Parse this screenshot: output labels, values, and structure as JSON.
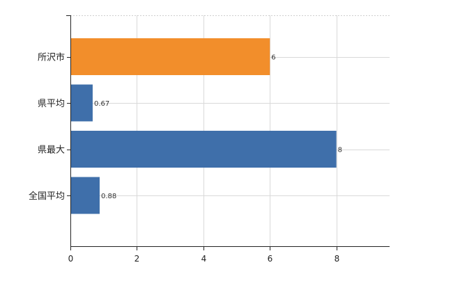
{
  "chart_data": {
    "type": "bar",
    "orientation": "horizontal",
    "title": "",
    "xlabel": "",
    "ylabel": "",
    "categories": [
      "所沢市",
      "県平均",
      "県最大",
      "全国平均"
    ],
    "values": [
      6,
      0.67,
      8,
      0.88
    ],
    "value_labels": [
      "6",
      "0.67",
      "8",
      "0.88"
    ],
    "colors": [
      "#f28e2b",
      "#3f6faa",
      "#3f6faa",
      "#3f6faa"
    ],
    "highlight_category": "所沢市",
    "xlim": [
      0,
      9.6
    ],
    "xticks": [
      0,
      2,
      4,
      6,
      8
    ],
    "xtick_labels": [
      "0",
      "2",
      "4",
      "6",
      "8"
    ],
    "grid": true,
    "legend": "none"
  }
}
